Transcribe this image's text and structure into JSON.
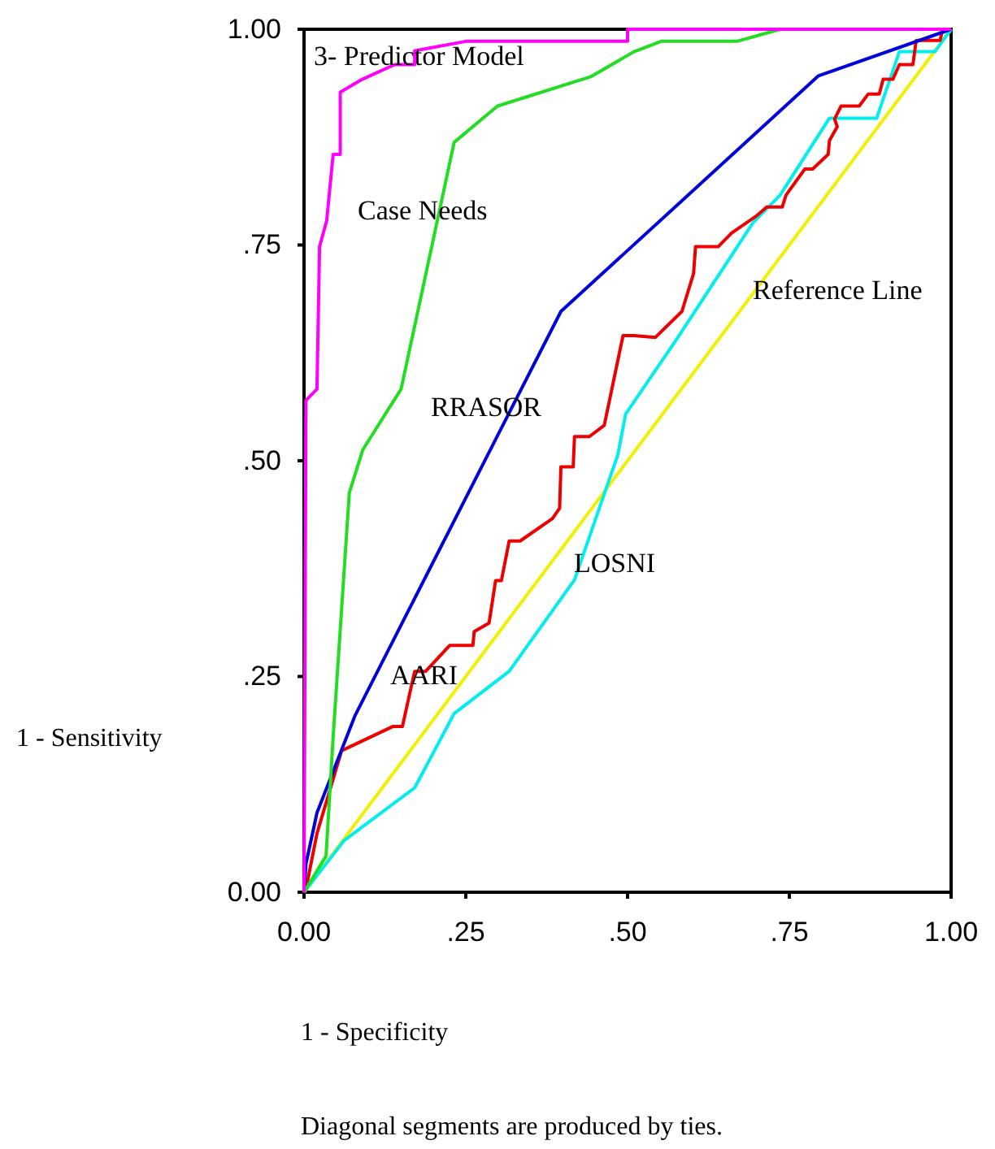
{
  "chart_data": {
    "type": "line",
    "xlabel": "1 - Specificity",
    "ylabel": "1 - Sensitivity",
    "annotations": [
      "Diagonal segments are produced by ties."
    ],
    "xlim": [
      0,
      1
    ],
    "ylim": [
      0,
      1
    ],
    "xticks": [
      {
        "value": 0,
        "label": "0.00"
      },
      {
        "value": 0.25,
        "label": ".25"
      },
      {
        "value": 0.5,
        "label": ".50"
      },
      {
        "value": 0.75,
        "label": ".75"
      },
      {
        "value": 1,
        "label": "1.00"
      }
    ],
    "yticks": [
      {
        "value": 0,
        "label": "0.00"
      },
      {
        "value": 0.25,
        "label": ".25"
      },
      {
        "value": 0.5,
        "label": ".50"
      },
      {
        "value": 0.75,
        "label": ".75"
      },
      {
        "value": 1,
        "label": "1.00"
      }
    ],
    "grid": false,
    "legend": false,
    "marker": "none",
    "line_style": "solid",
    "series": [
      {
        "name": "3- Predictor Model",
        "color": "#ff00ff",
        "x": [
          0,
          0.003,
          0.02,
          0.024,
          0.035,
          0.045,
          0.056,
          0.056,
          0.09,
          0.14,
          0.171,
          0.171,
          0.25,
          0.5,
          0.5,
          1
        ],
        "values": [
          0,
          0.57,
          0.583,
          0.748,
          0.778,
          0.855,
          0.855,
          0.927,
          0.942,
          0.959,
          0.959,
          0.975,
          0.986,
          0.986,
          1,
          1
        ]
      },
      {
        "name": "Case Needs",
        "color": "#22dd22",
        "x": [
          0,
          0.034,
          0.045,
          0.07,
          0.091,
          0.15,
          0.232,
          0.299,
          0.443,
          0.51,
          0.552,
          0.669,
          0.736,
          1
        ],
        "values": [
          0,
          0.042,
          0.18,
          0.463,
          0.513,
          0.583,
          0.869,
          0.911,
          0.945,
          0.974,
          0.986,
          0.986,
          1,
          1
        ]
      },
      {
        "name": "RRASOR",
        "color": "#0000dd",
        "x": [
          0,
          0.003,
          0.02,
          0.079,
          0.284,
          0.397,
          0.795,
          1
        ],
        "values": [
          0,
          0.033,
          0.092,
          0.205,
          0.507,
          0.673,
          0.946,
          1
        ]
      },
      {
        "name": "AARI",
        "color": "#ee0000",
        "x": [
          0,
          0.003,
          0.02,
          0.058,
          0.137,
          0.152,
          0.171,
          0.188,
          0.225,
          0.261,
          0.263,
          0.286,
          0.296,
          0.305,
          0.317,
          0.334,
          0.384,
          0.395,
          0.397,
          0.416,
          0.418,
          0.441,
          0.464,
          0.493,
          0.51,
          0.543,
          0.584,
          0.602,
          0.605,
          0.64,
          0.661,
          0.698,
          0.715,
          0.739,
          0.745,
          0.774,
          0.786,
          0.81,
          0.812,
          0.824,
          0.82,
          0.83,
          0.858,
          0.872,
          0.889,
          0.895,
          0.91,
          0.92,
          0.941,
          0.946,
          0.983,
          0.987,
          1
        ],
        "values": [
          0,
          0.004,
          0.068,
          0.164,
          0.192,
          0.192,
          0.256,
          0.256,
          0.286,
          0.286,
          0.302,
          0.312,
          0.361,
          0.361,
          0.407,
          0.407,
          0.433,
          0.445,
          0.493,
          0.493,
          0.528,
          0.528,
          0.541,
          0.645,
          0.645,
          0.643,
          0.673,
          0.717,
          0.748,
          0.748,
          0.764,
          0.783,
          0.794,
          0.794,
          0.808,
          0.838,
          0.838,
          0.855,
          0.871,
          0.887,
          0.896,
          0.911,
          0.911,
          0.925,
          0.925,
          0.942,
          0.942,
          0.959,
          0.959,
          0.987,
          0.987,
          1,
          1
        ]
      },
      {
        "name": "LOSNI",
        "color": "#00eeee",
        "x": [
          0,
          0.062,
          0.171,
          0.232,
          0.317,
          0.418,
          0.485,
          0.497,
          0.577,
          0.694,
          0.736,
          0.812,
          0.885,
          0.92,
          0.975,
          1
        ],
        "values": [
          0,
          0.06,
          0.121,
          0.207,
          0.256,
          0.362,
          0.507,
          0.554,
          0.642,
          0.776,
          0.808,
          0.897,
          0.897,
          0.974,
          0.974,
          1
        ]
      },
      {
        "name": "Reference Line",
        "color": "#f0f000",
        "x": [
          0,
          1
        ],
        "values": [
          0,
          1
        ]
      }
    ]
  }
}
